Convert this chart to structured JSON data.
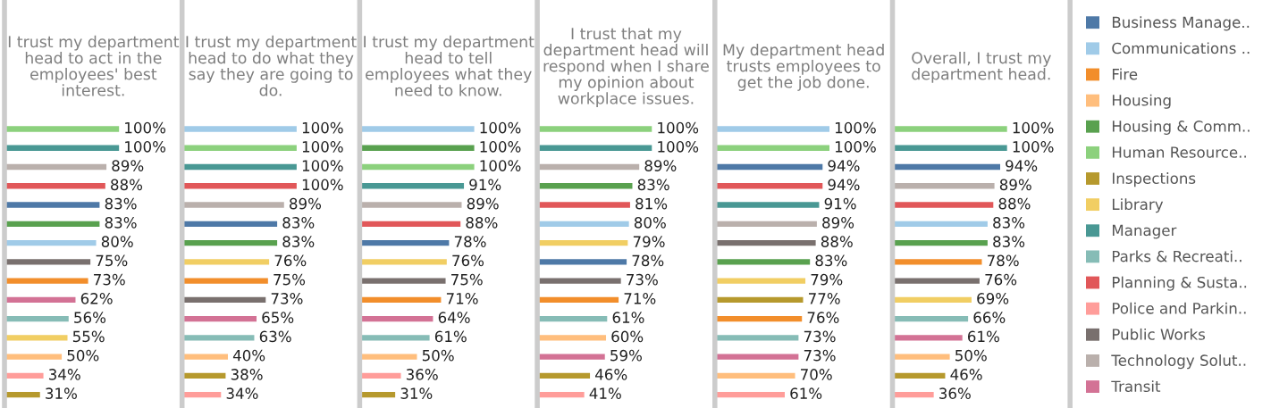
{
  "chart_data": [
    {
      "type": "bar",
      "orientation": "horizontal",
      "title": "I trust my department\nhead to act in the\nemployees' best\ninterest.",
      "categories": [
        null,
        null,
        null,
        null,
        null,
        null,
        null,
        null,
        null,
        null,
        null,
        null,
        null,
        null,
        null
      ],
      "xlim": [
        0,
        155
      ],
      "values": [
        100,
        100,
        89,
        88,
        83,
        83,
        80,
        75,
        73,
        62,
        56,
        55,
        50,
        34,
        31
      ],
      "value_labels": [
        "100%",
        "100%",
        "89%",
        "88%",
        "83%",
        "83%",
        "80%",
        "75%",
        "73%",
        "62%",
        "56%",
        "55%",
        "50%",
        "34%",
        "31%"
      ],
      "colors": [
        "#8cd17d",
        "#499894",
        "#bab0ac",
        "#e15759",
        "#4e79a7",
        "#59a14f",
        "#a0cbe8",
        "#79706e",
        "#f28e2b",
        "#d37295",
        "#86bcb6",
        "#f1ce63",
        "#ffbe7d",
        "#ff9d9a",
        "#b6992d"
      ]
    },
    {
      "type": "bar",
      "orientation": "horizontal",
      "title": "I trust my department\nhead to do what they\nsay they are going to\ndo.",
      "categories": [
        null,
        null,
        null,
        null,
        null,
        null,
        null,
        null,
        null,
        null,
        null,
        null,
        null,
        null,
        null
      ],
      "xlim": [
        0,
        155
      ],
      "values": [
        100,
        100,
        100,
        100,
        89,
        83,
        83,
        76,
        75,
        73,
        65,
        63,
        40,
        38,
        34
      ],
      "value_labels": [
        "100%",
        "100%",
        "100%",
        "100%",
        "89%",
        "83%",
        "83%",
        "76%",
        "75%",
        "73%",
        "65%",
        "63%",
        "40%",
        "38%",
        "34%"
      ],
      "colors": [
        "#a0cbe8",
        "#8cd17d",
        "#499894",
        "#e15759",
        "#bab0ac",
        "#4e79a7",
        "#59a14f",
        "#f1ce63",
        "#f28e2b",
        "#79706e",
        "#d37295",
        "#86bcb6",
        "#ffbe7d",
        "#b6992d",
        "#ff9d9a"
      ]
    },
    {
      "type": "bar",
      "orientation": "horizontal",
      "title": "I trust my department\nhead to tell\nemployees what they\nneed to know.",
      "categories": [
        null,
        null,
        null,
        null,
        null,
        null,
        null,
        null,
        null,
        null,
        null,
        null,
        null,
        null,
        null
      ],
      "xlim": [
        0,
        155
      ],
      "values": [
        100,
        100,
        100,
        91,
        89,
        88,
        78,
        76,
        75,
        71,
        64,
        61,
        50,
        36,
        31
      ],
      "value_labels": [
        "100%",
        "100%",
        "100%",
        "91%",
        "89%",
        "88%",
        "78%",
        "76%",
        "75%",
        "71%",
        "64%",
        "61%",
        "50%",
        "36%",
        "31%"
      ],
      "colors": [
        "#a0cbe8",
        "#59a14f",
        "#8cd17d",
        "#499894",
        "#bab0ac",
        "#e15759",
        "#4e79a7",
        "#f1ce63",
        "#79706e",
        "#f28e2b",
        "#d37295",
        "#86bcb6",
        "#ffbe7d",
        "#ff9d9a",
        "#b6992d"
      ]
    },
    {
      "type": "bar",
      "orientation": "horizontal",
      "title": "I trust that my\ndepartment head will\nrespond when I share\nmy opinion about\nworkplace issues.",
      "categories": [
        null,
        null,
        null,
        null,
        null,
        null,
        null,
        null,
        null,
        null,
        null,
        null,
        null,
        null,
        null
      ],
      "xlim": [
        0,
        155
      ],
      "values": [
        100,
        100,
        89,
        83,
        81,
        80,
        79,
        78,
        73,
        71,
        61,
        60,
        59,
        46,
        41
      ],
      "value_labels": [
        "100%",
        "100%",
        "89%",
        "83%",
        "81%",
        "80%",
        "79%",
        "78%",
        "73%",
        "71%",
        "61%",
        "60%",
        "59%",
        "46%",
        "41%"
      ],
      "colors": [
        "#8cd17d",
        "#499894",
        "#bab0ac",
        "#59a14f",
        "#e15759",
        "#a0cbe8",
        "#f1ce63",
        "#4e79a7",
        "#79706e",
        "#f28e2b",
        "#86bcb6",
        "#ffbe7d",
        "#d37295",
        "#b6992d",
        "#ff9d9a"
      ]
    },
    {
      "type": "bar",
      "orientation": "horizontal",
      "title": "My department head\ntrusts employees to\nget the job done.",
      "categories": [
        null,
        null,
        null,
        null,
        null,
        null,
        null,
        null,
        null,
        null,
        null,
        null,
        null,
        null,
        null
      ],
      "xlim": [
        0,
        155
      ],
      "values": [
        100,
        100,
        94,
        94,
        91,
        89,
        88,
        83,
        79,
        77,
        76,
        73,
        73,
        70,
        61
      ],
      "value_labels": [
        "100%",
        "100%",
        "94%",
        "94%",
        "91%",
        "89%",
        "88%",
        "83%",
        "79%",
        "77%",
        "76%",
        "73%",
        "73%",
        "70%",
        "61%"
      ],
      "colors": [
        "#a0cbe8",
        "#8cd17d",
        "#4e79a7",
        "#e15759",
        "#499894",
        "#bab0ac",
        "#79706e",
        "#59a14f",
        "#f1ce63",
        "#b6992d",
        "#f28e2b",
        "#86bcb6",
        "#d37295",
        "#ffbe7d",
        "#ff9d9a"
      ]
    },
    {
      "type": "bar",
      "orientation": "horizontal",
      "title": "Overall, I trust my\ndepartment head.",
      "categories": [
        null,
        null,
        null,
        null,
        null,
        null,
        null,
        null,
        null,
        null,
        null,
        null,
        null,
        null,
        null
      ],
      "xlim": [
        0,
        155
      ],
      "values": [
        100,
        100,
        94,
        89,
        88,
        83,
        83,
        78,
        76,
        69,
        66,
        61,
        50,
        46,
        36
      ],
      "value_labels": [
        "100%",
        "100%",
        "94%",
        "89%",
        "88%",
        "83%",
        "83%",
        "78%",
        "76%",
        "69%",
        "66%",
        "61%",
        "50%",
        "46%",
        "36%"
      ],
      "colors": [
        "#8cd17d",
        "#499894",
        "#4e79a7",
        "#bab0ac",
        "#e15759",
        "#a0cbe8",
        "#59a14f",
        "#f28e2b",
        "#79706e",
        "#f1ce63",
        "#86bcb6",
        "#d37295",
        "#ffbe7d",
        "#b6992d",
        "#ff9d9a"
      ]
    },
    {
      "type": "other",
      "categories": [
        "Business Manage..",
        "Communications ..",
        "Fire",
        "Housing",
        "Housing & Comm..",
        "Human Resource..",
        "Inspections",
        "Library",
        "Manager",
        "Parks & Recreati..",
        "Planning & Susta..",
        "Police and Parkin..",
        "Public Works",
        "Technology Solut..",
        "Transit"
      ],
      "colors": [
        "#4e79a7",
        "#a0cbe8",
        "#f28e2b",
        "#ffbe7d",
        "#59a14f",
        "#8cd17d",
        "#b6992d",
        "#f1ce63",
        "#499894",
        "#86bcb6",
        "#e15759",
        "#ff9d9a",
        "#79706e",
        "#bab0ac",
        "#d37295"
      ]
    }
  ]
}
